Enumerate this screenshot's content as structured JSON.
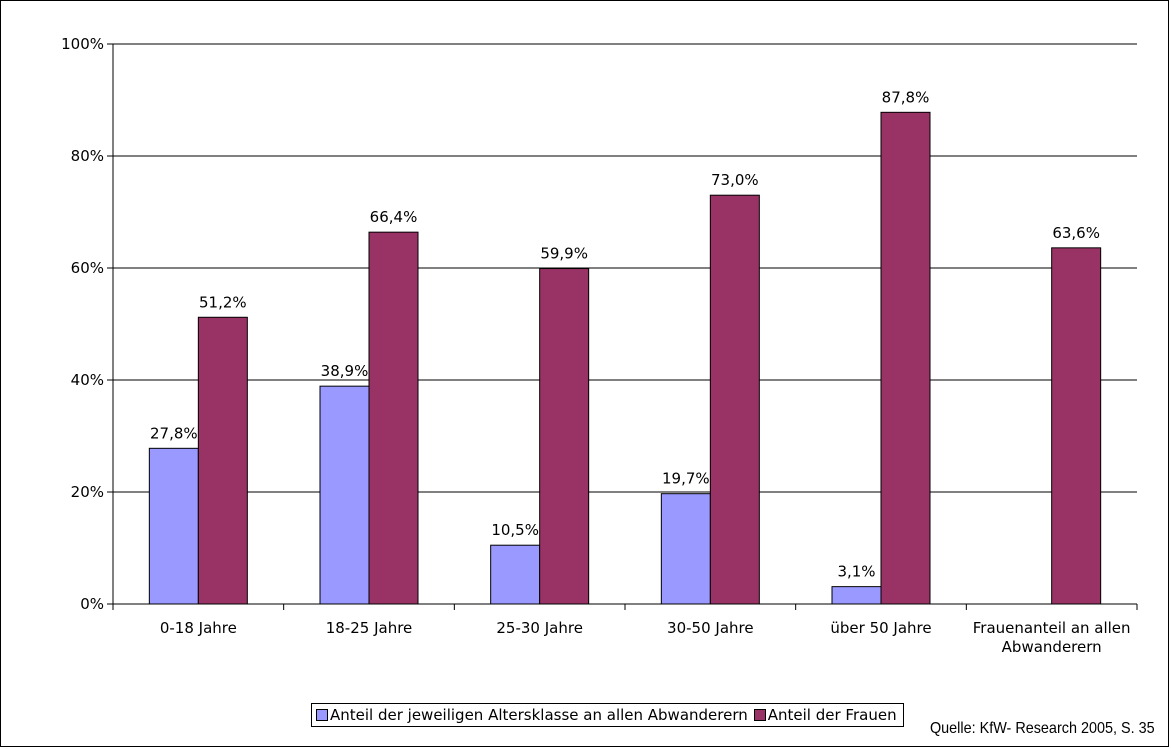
{
  "chart_data": {
    "type": "bar",
    "title": "",
    "xlabel": "",
    "ylabel": "",
    "ylim": [
      0,
      100
    ],
    "y_ticks": [
      "0%",
      "20%",
      "40%",
      "60%",
      "80%",
      "100%"
    ],
    "y_tick_values": [
      0,
      20,
      40,
      60,
      80,
      100
    ],
    "grid": true,
    "legend_position": "bottom",
    "categories": [
      "0-18 Jahre",
      "18-25 Jahre",
      "25-30 Jahre",
      "30-50 Jahre",
      "über 50 Jahre",
      "Frauenanteil an allen Abwanderern"
    ],
    "category_lines": [
      [
        "0-18 Jahre"
      ],
      [
        "18-25 Jahre"
      ],
      [
        "25-30 Jahre"
      ],
      [
        "30-50 Jahre"
      ],
      [
        "über 50 Jahre"
      ],
      [
        "Frauenanteil an allen",
        "Abwanderern"
      ]
    ],
    "series": [
      {
        "name": "Anteil der jeweiligen Altersklasse an allen Abwanderern",
        "color": "#9999ff",
        "values": [
          27.8,
          38.9,
          10.5,
          19.7,
          3.1,
          null
        ],
        "labels": [
          "27,8%",
          "38,9%",
          "10,5%",
          "19,7%",
          "3,1%",
          null
        ]
      },
      {
        "name": "Anteil der Frauen",
        "color": "#993366",
        "values": [
          51.2,
          66.4,
          59.9,
          73.0,
          87.8,
          63.6
        ],
        "labels": [
          "51,2%",
          "66,4%",
          "59,9%",
          "73,0%",
          "87,8%",
          "63,6%"
        ]
      }
    ]
  },
  "source_note": "Quelle: KfW- Research 2005, S. 35"
}
